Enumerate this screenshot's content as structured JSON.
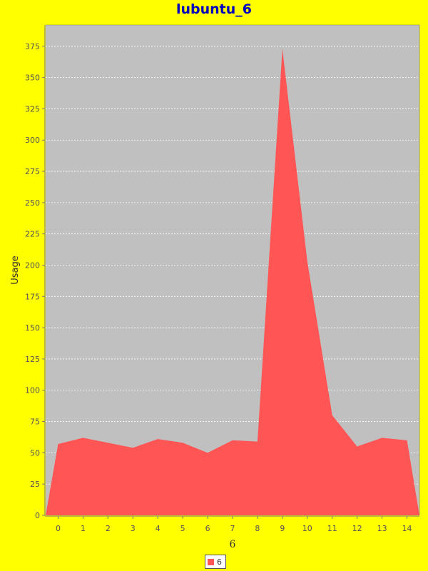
{
  "title": "lubuntu_6",
  "colors": {
    "background": "#ffff00",
    "plot_background": "#c0c0c0",
    "series": "#ff5555",
    "title": "#0000c0",
    "grid": "#ffffff"
  },
  "chart_data": {
    "type": "area",
    "title": "lubuntu_6",
    "xlabel": "6",
    "ylabel": "Usage",
    "categories": [
      "0",
      "1",
      "2",
      "3",
      "4",
      "5",
      "6",
      "7",
      "8",
      "9",
      "10",
      "11",
      "12",
      "13",
      "14"
    ],
    "series": [
      {
        "name": "6",
        "values": [
          57,
          62,
          58,
          54,
          61,
          58,
          50,
          60,
          59,
          373,
          203,
          80,
          55,
          62,
          60
        ]
      }
    ],
    "ylim": [
      0,
      392
    ],
    "yticks": [
      0,
      25,
      50,
      75,
      100,
      125,
      150,
      175,
      200,
      225,
      250,
      275,
      300,
      325,
      350,
      375
    ],
    "grid": true,
    "legend_position": "bottom"
  }
}
